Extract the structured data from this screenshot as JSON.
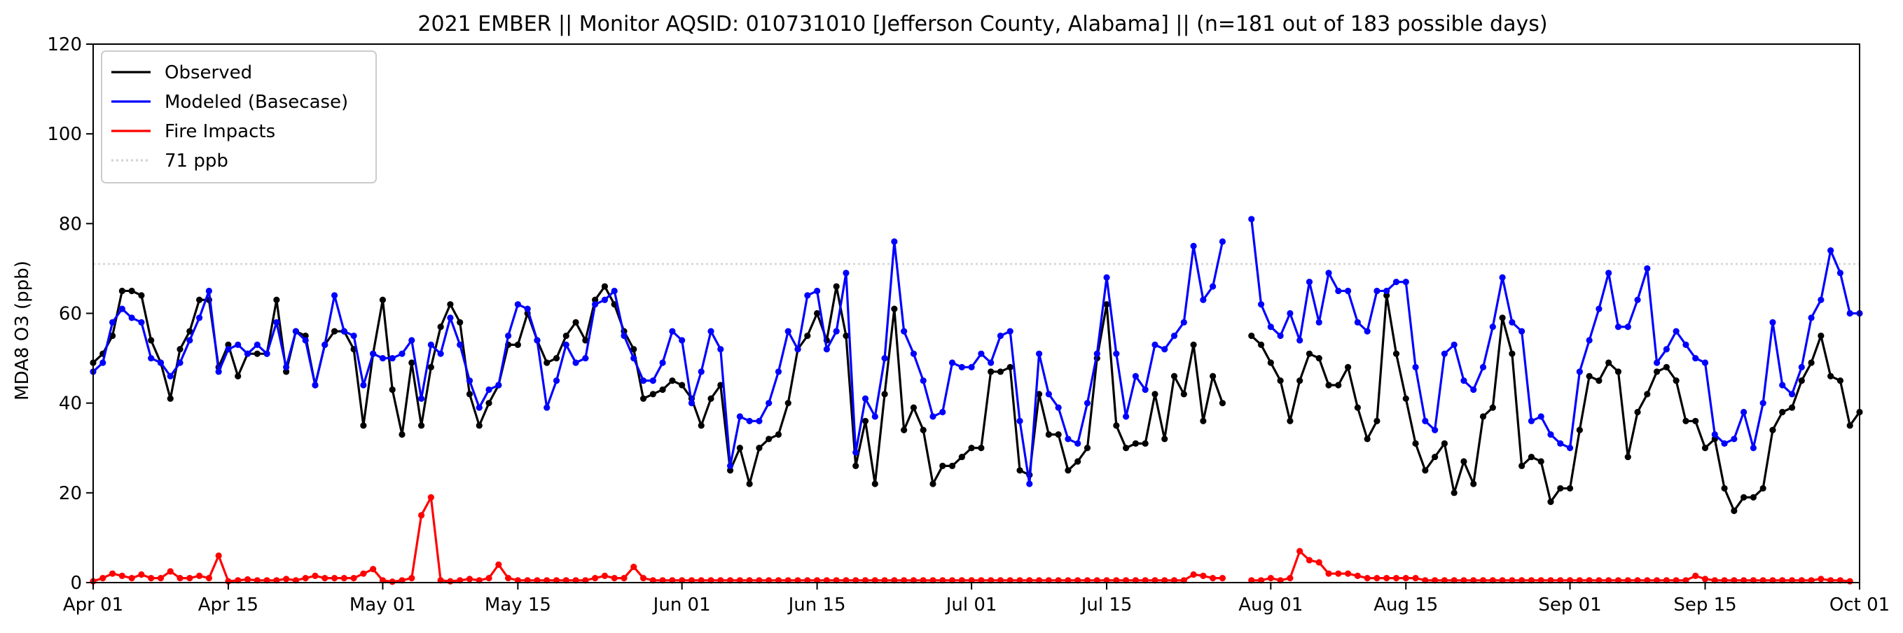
{
  "chart_data": {
    "type": "line",
    "title": "2021 EMBER || Monitor AQSID: 010731010 [Jefferson County, Alabama] || (n=181 out of 183 possible days)",
    "xlabel": "",
    "ylabel": "MDA8 O3 (ppb)",
    "x_start": "2021-04-01",
    "x_end": "2021-10-01",
    "xlim": [
      "2021-04-01",
      "2021-10-01"
    ],
    "ylim": [
      0,
      120
    ],
    "x_ticks": [
      {
        "date": "2021-04-01",
        "label": "Apr 01"
      },
      {
        "date": "2021-04-15",
        "label": "Apr 15"
      },
      {
        "date": "2021-05-01",
        "label": "May 01"
      },
      {
        "date": "2021-05-15",
        "label": "May 15"
      },
      {
        "date": "2021-06-01",
        "label": "Jun 01"
      },
      {
        "date": "2021-06-15",
        "label": "Jun 15"
      },
      {
        "date": "2021-07-01",
        "label": "Jul 01"
      },
      {
        "date": "2021-07-15",
        "label": "Jul 15"
      },
      {
        "date": "2021-08-01",
        "label": "Aug 01"
      },
      {
        "date": "2021-08-15",
        "label": "Aug 15"
      },
      {
        "date": "2021-09-01",
        "label": "Sep 01"
      },
      {
        "date": "2021-09-15",
        "label": "Sep 15"
      },
      {
        "date": "2021-10-01",
        "label": "Oct 01"
      }
    ],
    "y_ticks": [
      0,
      20,
      40,
      60,
      80,
      100,
      120
    ],
    "legend_position": "upper-left",
    "grid": false,
    "reference_line": {
      "name": "71 ppb",
      "value": 71,
      "color": "#d3d3d3"
    },
    "series": [
      {
        "name": "Observed",
        "color": "#000000",
        "values": [
          49,
          51,
          55,
          65,
          65,
          64,
          54,
          49,
          41,
          52,
          56,
          63,
          63,
          48,
          53,
          46,
          51,
          51,
          51,
          63,
          47,
          56,
          55,
          44,
          53,
          56,
          56,
          52,
          35,
          51,
          63,
          43,
          33,
          49,
          35,
          48,
          57,
          62,
          58,
          42,
          35,
          40,
          44,
          53,
          53,
          60,
          54,
          49,
          50,
          55,
          58,
          54,
          63,
          66,
          62,
          56,
          52,
          41,
          42,
          43,
          45,
          44,
          41,
          35,
          41,
          44,
          25,
          30,
          22,
          30,
          32,
          33,
          40,
          52,
          55,
          60,
          54,
          66,
          55,
          26,
          36,
          22,
          42,
          61,
          34,
          39,
          34,
          22,
          26,
          26,
          28,
          30,
          30,
          47,
          47,
          48,
          25,
          24,
          42,
          33,
          33,
          25,
          27,
          30,
          50,
          62,
          35,
          30,
          31,
          31,
          42,
          32,
          46,
          42,
          53,
          36,
          46,
          40,
          null,
          null,
          55,
          53,
          49,
          45,
          36,
          45,
          51,
          50,
          44,
          44,
          48,
          39,
          32,
          36,
          64,
          51,
          41,
          31,
          25,
          28,
          31,
          20,
          27,
          22,
          37,
          39,
          59,
          51,
          26,
          28,
          27,
          18,
          21,
          21,
          34,
          46,
          45,
          49,
          47,
          28,
          38,
          42,
          47,
          48,
          45,
          36,
          36,
          30,
          32,
          21,
          16,
          19,
          19,
          21,
          34,
          38,
          39,
          45,
          49,
          55,
          46,
          45,
          35,
          38
        ],
        "missing_dates": [
          "2021-07-29",
          "2021-07-30"
        ]
      },
      {
        "name": "Modeled (Basecase)",
        "color": "#0000ff",
        "values": [
          47,
          49,
          58,
          61,
          59,
          58,
          50,
          49,
          46,
          49,
          54,
          59,
          65,
          47,
          52,
          53,
          51,
          53,
          51,
          58,
          48,
          56,
          54,
          44,
          53,
          64,
          56,
          55,
          44,
          51,
          50,
          50,
          51,
          54,
          41,
          53,
          51,
          59,
          53,
          45,
          39,
          43,
          44,
          55,
          62,
          61,
          54,
          39,
          45,
          53,
          49,
          50,
          62,
          63,
          65,
          55,
          50,
          45,
          45,
          49,
          56,
          54,
          40,
          47,
          56,
          52,
          26,
          37,
          36,
          36,
          40,
          47,
          56,
          52,
          64,
          65,
          52,
          56,
          69,
          29,
          41,
          37,
          50,
          76,
          56,
          51,
          45,
          37,
          38,
          49,
          48,
          48,
          51,
          49,
          55,
          56,
          36,
          22,
          51,
          42,
          39,
          32,
          31,
          40,
          51,
          68,
          51,
          37,
          46,
          43,
          53,
          52,
          55,
          58,
          75,
          63,
          66,
          76,
          null,
          null,
          81,
          62,
          57,
          55,
          60,
          54,
          67,
          58,
          69,
          65,
          65,
          58,
          56,
          65,
          65,
          67,
          67,
          48,
          36,
          34,
          51,
          53,
          45,
          43,
          48,
          57,
          68,
          58,
          56,
          36,
          37,
          33,
          31,
          30,
          47,
          54,
          61,
          69,
          57,
          57,
          63,
          70,
          49,
          52,
          56,
          53,
          50,
          49,
          33,
          31,
          32,
          38,
          30,
          40,
          58,
          44,
          42,
          48,
          59,
          63,
          74,
          69,
          60,
          60
        ],
        "missing_dates": [
          "2021-07-29",
          "2021-07-30"
        ]
      },
      {
        "name": "Fire Impacts",
        "color": "#ff0000",
        "values": [
          0.3,
          1,
          2,
          1.5,
          1,
          1.8,
          1,
          1,
          2.5,
          1,
          1,
          1.5,
          1,
          6,
          0.3,
          0.5,
          0.7,
          0.5,
          0.5,
          0.5,
          0.8,
          0.5,
          1,
          1.5,
          1,
          1,
          1,
          1,
          2,
          3,
          0.5,
          0.2,
          0.5,
          1,
          15,
          19,
          0.5,
          0.3,
          0.5,
          0.8,
          0.5,
          1,
          4,
          1,
          0.5,
          0.5,
          0.5,
          0.5,
          0.5,
          0.5,
          0.5,
          0.5,
          1,
          1.5,
          1,
          1,
          3.5,
          1,
          0.5,
          0.5,
          0.5,
          0.5,
          0.5,
          0.5,
          0.5,
          0.5,
          0.5,
          0.5,
          0.5,
          0.5,
          0.5,
          0.5,
          0.5,
          0.5,
          0.5,
          0.5,
          0.5,
          0.5,
          0.5,
          0.5,
          0.5,
          0.5,
          0.5,
          0.5,
          0.5,
          0.5,
          0.5,
          0.5,
          0.5,
          0.5,
          0.5,
          0.5,
          0.5,
          0.5,
          0.5,
          0.5,
          0.5,
          0.5,
          0.5,
          0.5,
          0.5,
          0.5,
          0.5,
          0.5,
          0.5,
          0.5,
          0.5,
          0.5,
          0.5,
          0.5,
          0.5,
          0.5,
          0.5,
          0.5,
          1.8,
          1.5,
          1,
          1,
          null,
          null,
          0.5,
          0.5,
          1,
          0.5,
          1,
          7,
          5,
          4.5,
          2,
          2,
          2,
          1.5,
          1,
          1,
          1,
          1,
          1,
          1,
          0.5,
          0.5,
          0.5,
          0.5,
          0.5,
          0.5,
          0.5,
          0.5,
          0.5,
          0.5,
          0.5,
          0.5,
          0.5,
          0.5,
          0.5,
          0.5,
          0.5,
          0.5,
          0.5,
          0.5,
          0.5,
          0.5,
          0.5,
          0.5,
          0.5,
          0.5,
          0.5,
          0.5,
          1.5,
          0.8,
          0.5,
          0.5,
          0.5,
          0.5,
          0.5,
          0.5,
          0.5,
          0.5,
          0.5,
          0.5,
          0.5,
          0.8,
          0.5,
          0.5,
          0.3
        ],
        "missing_dates": [
          "2021-07-29",
          "2021-07-30"
        ]
      }
    ]
  }
}
